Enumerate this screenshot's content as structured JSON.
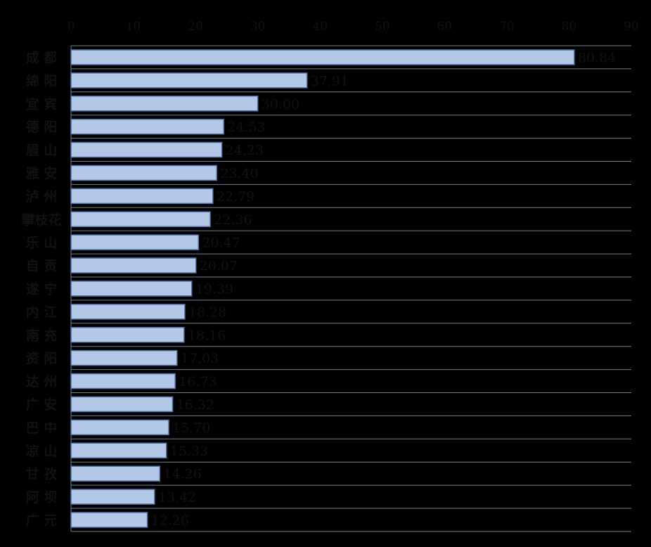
{
  "chart_data": {
    "type": "bar",
    "orientation": "horizontal",
    "title": "",
    "xlabel": "",
    "ylabel": "",
    "xlim": [
      0,
      90
    ],
    "x_ticks": [
      "0",
      "10",
      "20",
      "30",
      "40",
      "50",
      "60",
      "70",
      "80",
      "90"
    ],
    "x_axis_position": "top",
    "grid": "horizontal separators",
    "categories": [
      "成 都",
      "绵 阳",
      "宜 宾",
      "德 阳",
      "眉 山",
      "雅 安",
      "泸 州",
      "攀枝花",
      "乐 山",
      "自 贡",
      "遂 宁",
      "内 江",
      "南 充",
      "资 阳",
      "达 州",
      "广 安",
      "巴 中",
      "凉 山",
      "甘 孜",
      "阿 坝",
      "广 元"
    ],
    "values": [
      80.84,
      37.91,
      30.0,
      24.53,
      24.23,
      23.4,
      22.79,
      22.36,
      20.47,
      20.07,
      19.39,
      18.28,
      18.16,
      17.03,
      16.73,
      16.32,
      15.7,
      15.33,
      14.26,
      13.42,
      12.26
    ],
    "value_labels": [
      "80.84",
      "37.91",
      "30.00",
      "24.53",
      "24.23",
      "23.40",
      "22.79",
      "22.36",
      "20.47",
      "20.07",
      "19.39",
      "18.28",
      "18.16",
      "17.03",
      "16.73",
      "16.32",
      "15.70",
      "15.33",
      "14.26",
      "13.42",
      "12.26"
    ],
    "colors": {
      "bar_fill": "#b3c7e6",
      "bar_stroke": "#4f6fa8",
      "background": "#000000"
    }
  }
}
